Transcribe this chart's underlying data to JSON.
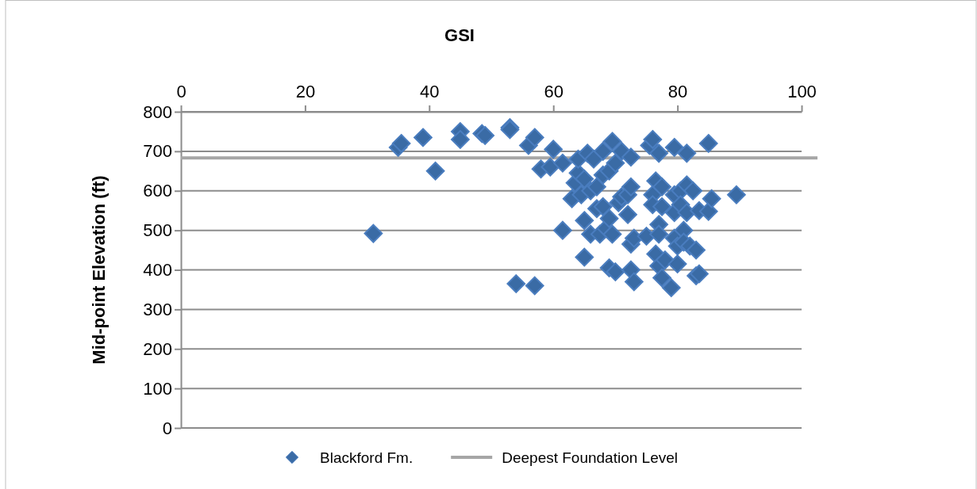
{
  "chart_data": {
    "type": "scatter",
    "xlabel": "GSI",
    "ylabel": "Mid-point Elevation (ft)",
    "xlim": [
      0,
      100
    ],
    "xticks": [
      0,
      20,
      40,
      60,
      80,
      100
    ],
    "ylim": [
      0,
      800
    ],
    "yticks": [
      0,
      100,
      200,
      300,
      400,
      500,
      600,
      700,
      800
    ],
    "grid": "y",
    "legend": "bottom",
    "marker": "diamond",
    "series": [
      {
        "name": "Blackford Fm.",
        "color": "#3a6ba5",
        "x": [
          35,
          35.5,
          39,
          41,
          45,
          45,
          48.5,
          49,
          53,
          53,
          56,
          57,
          58,
          59.5,
          60,
          61.5,
          61.5,
          31,
          54,
          57,
          63,
          63.5,
          64,
          64,
          64.5,
          65,
          65.5,
          65,
          65,
          66,
          66,
          66.5,
          67,
          67,
          67.5,
          68,
          68,
          68,
          68.5,
          69,
          69,
          69,
          69.5,
          69.5,
          70,
          70,
          70.5,
          71,
          71,
          72,
          72,
          72.5,
          72.5,
          72.5,
          72.5,
          73,
          73,
          75,
          75.5,
          76,
          76,
          76,
          76.5,
          76.5,
          77,
          77,
          77,
          77,
          77.5,
          77.5,
          77.5,
          78,
          79,
          79.5,
          79.5,
          79.5,
          79.5,
          80,
          80,
          80.5,
          80.5,
          81,
          81,
          81.5,
          81.5,
          81.5,
          82,
          82.5,
          83,
          83,
          83.5,
          83.5,
          85,
          85,
          85.5,
          89.5
        ],
        "values": [
          710,
          720,
          735,
          650,
          750,
          730,
          745,
          740,
          760,
          755,
          715,
          735,
          655,
          660,
          705,
          670,
          500,
          492,
          365,
          360,
          580,
          620,
          645,
          680,
          590,
          525,
          695,
          630,
          432,
          600,
          490,
          680,
          555,
          610,
          490,
          700,
          640,
          560,
          505,
          530,
          650,
          405,
          725,
          490,
          670,
          395,
          570,
          700,
          585,
          590,
          540,
          610,
          685,
          465,
          400,
          370,
          480,
          485,
          715,
          730,
          590,
          565,
          625,
          440,
          515,
          490,
          695,
          410,
          380,
          610,
          560,
          425,
          355,
          710,
          590,
          545,
          480,
          460,
          415,
          600,
          565,
          500,
          470,
          695,
          615,
          545,
          460,
          600,
          450,
          385,
          390,
          550,
          720,
          548,
          580,
          590
        ]
      }
    ],
    "ref_lines": [
      {
        "axis": "y",
        "value": 683,
        "label": "Deepest Foundation Level",
        "color": "#a6a6a6",
        "line_style": "solid"
      }
    ]
  }
}
